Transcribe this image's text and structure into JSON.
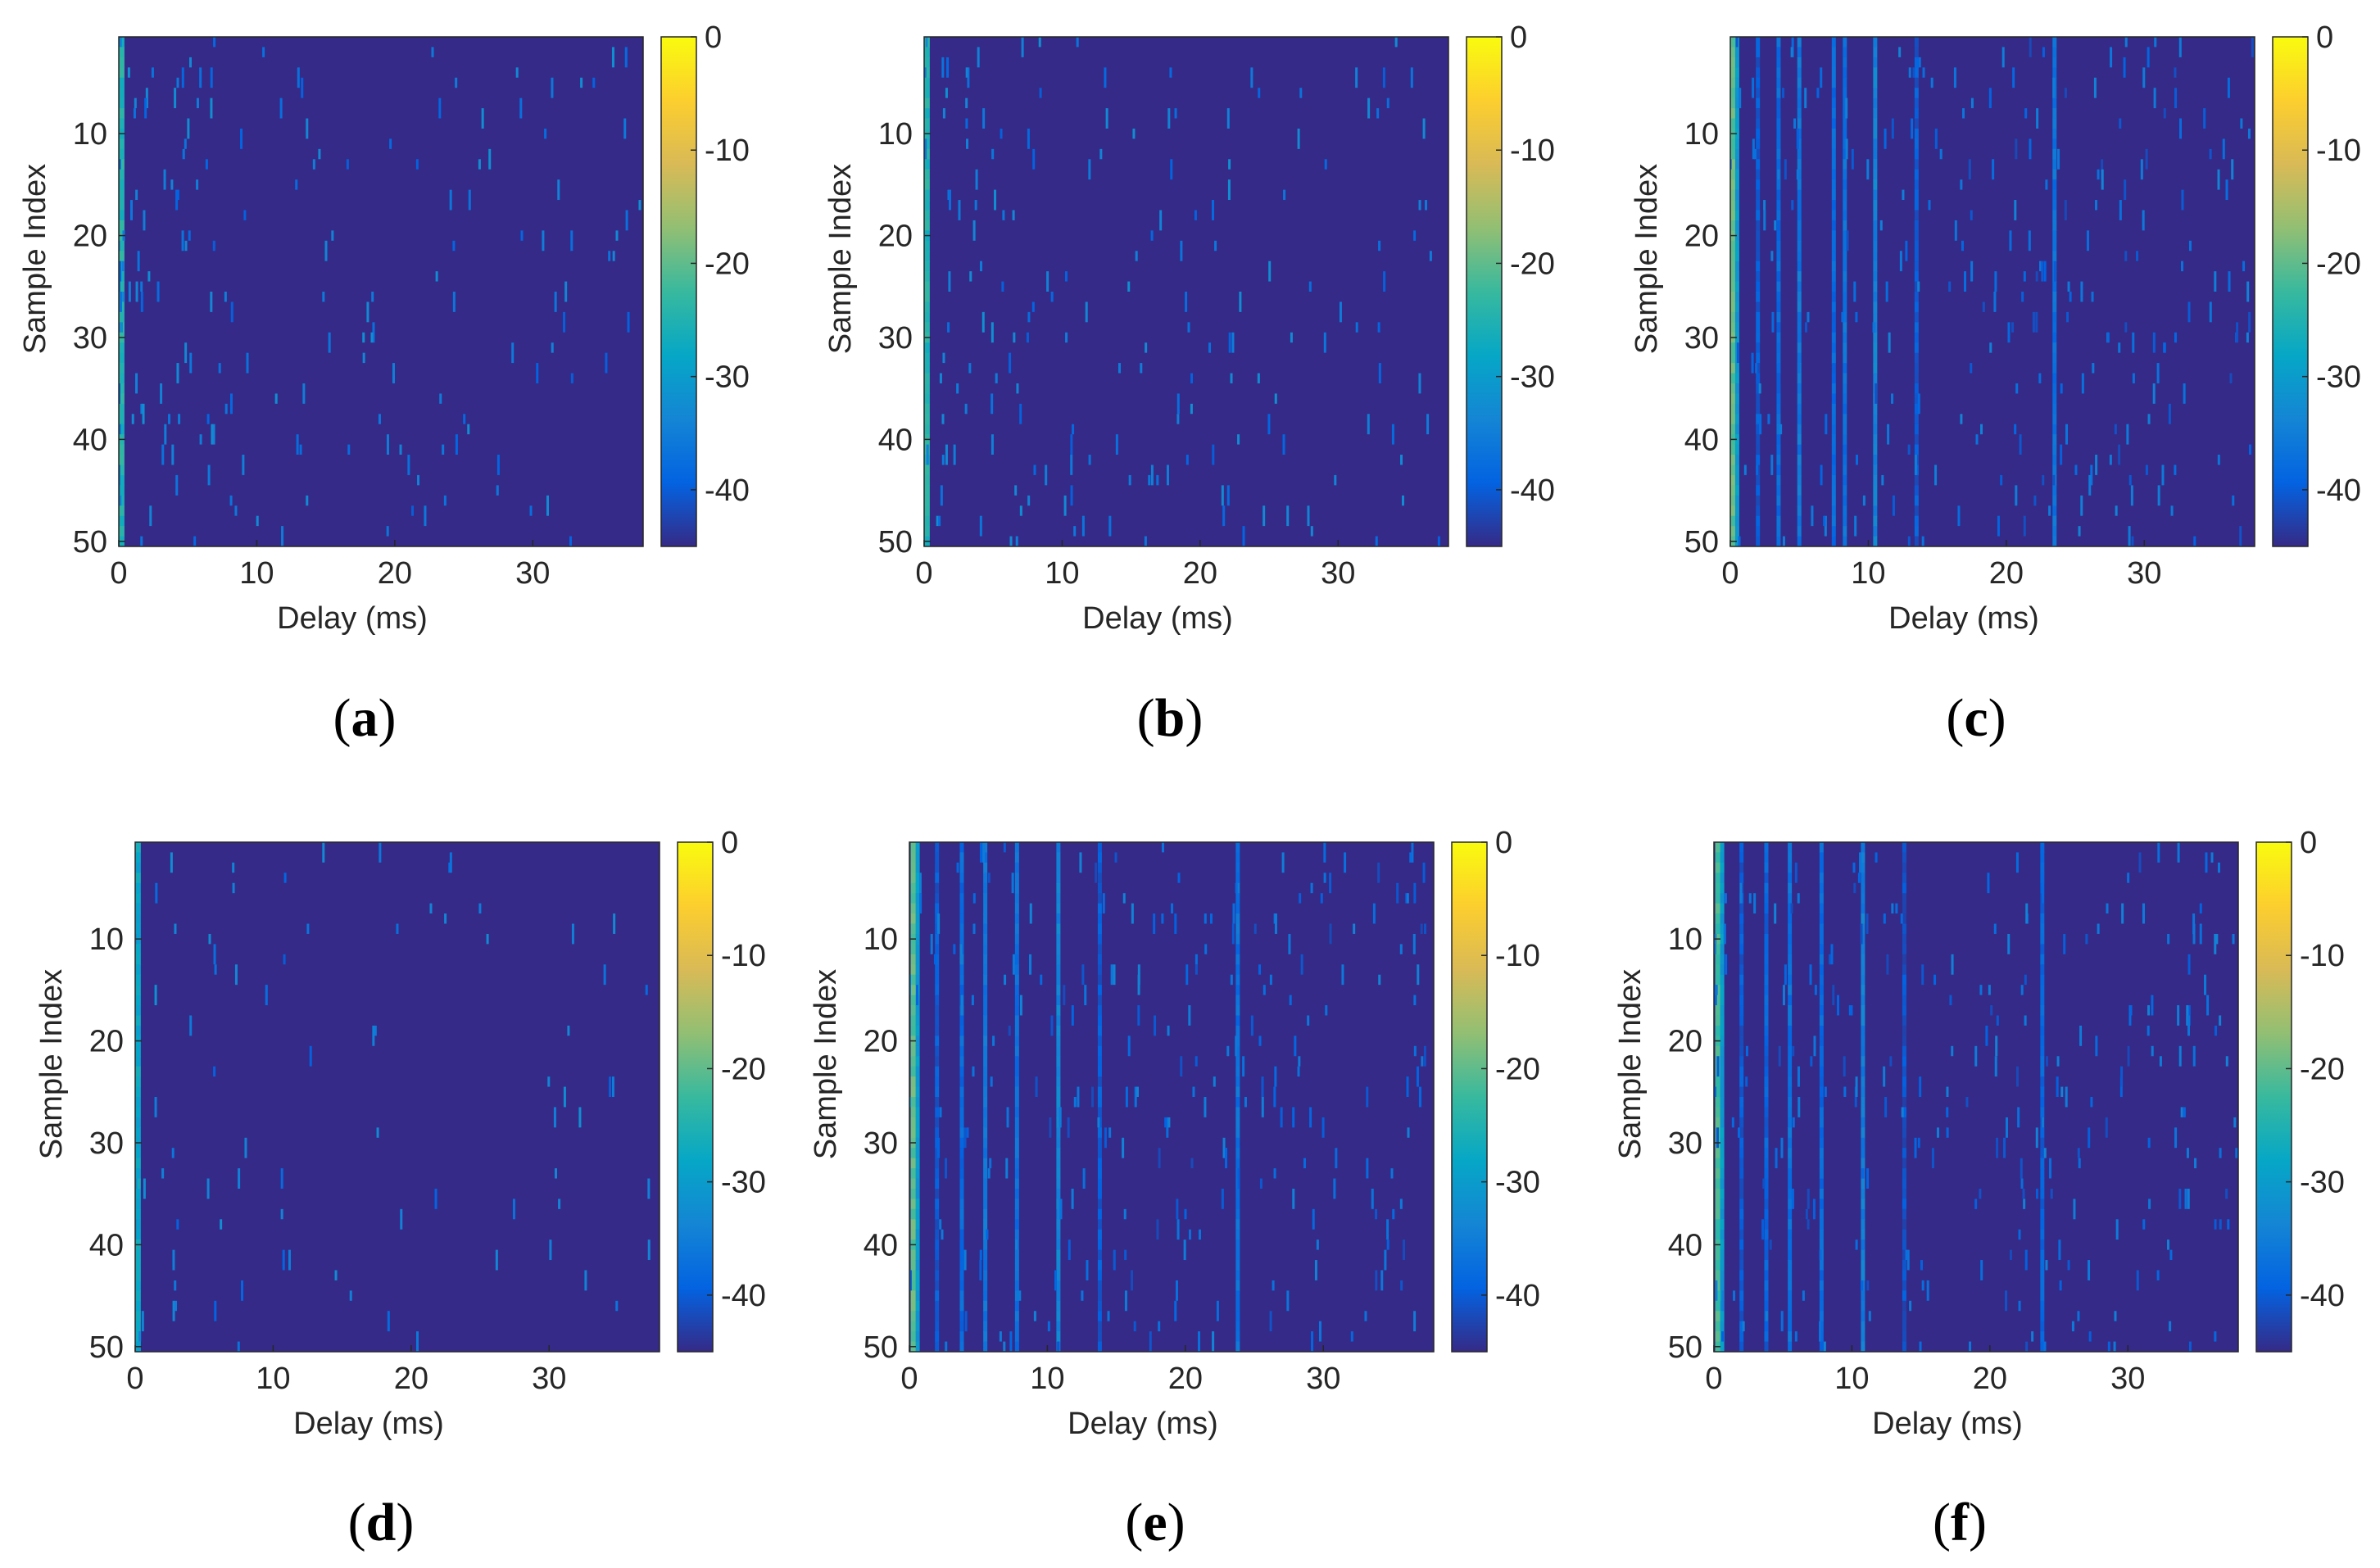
{
  "chart_data": [
    {
      "type": "heatmap",
      "caption_letter": "a",
      "xlabel": "Delay (ms)",
      "ylabel": "Sample Index",
      "xlim": [
        0,
        38
      ],
      "ylim": [
        1,
        50
      ],
      "xticks": [
        0,
        10,
        20,
        30
      ],
      "yticks": [
        10,
        20,
        30,
        40,
        50
      ],
      "colorbar": {
        "range": [
          -45,
          0
        ],
        "ticks": [
          0,
          -10,
          -20,
          -30,
          -40
        ]
      },
      "background_db": -45,
      "pattern": "sparse-scatter",
      "sparsity": 0.55,
      "strong_delays_ms": [
        0.2
      ],
      "strong_delay_levels_db": [
        -25
      ]
    },
    {
      "type": "heatmap",
      "caption_letter": "b",
      "xlabel": "Delay (ms)",
      "ylabel": "Sample Index",
      "xlim": [
        0,
        38
      ],
      "ylim": [
        1,
        50
      ],
      "xticks": [
        0,
        10,
        20,
        30
      ],
      "yticks": [
        10,
        20,
        30,
        40,
        50
      ],
      "colorbar": {
        "range": [
          -45,
          0
        ],
        "ticks": [
          0,
          -10,
          -20,
          -30,
          -40
        ]
      },
      "background_db": -45,
      "pattern": "sparse-scatter",
      "sparsity": 0.55,
      "strong_delays_ms": [
        0.2
      ],
      "strong_delay_levels_db": [
        -25
      ]
    },
    {
      "type": "heatmap",
      "caption_letter": "c",
      "xlabel": "Delay (ms)",
      "ylabel": "Sample Index",
      "xlim": [
        0,
        38
      ],
      "ylim": [
        1,
        50
      ],
      "xticks": [
        0,
        10,
        20,
        30
      ],
      "yticks": [
        10,
        20,
        30,
        40,
        50
      ],
      "colorbar": {
        "range": [
          -45,
          0
        ],
        "ticks": [
          0,
          -10,
          -20,
          -30,
          -40
        ]
      },
      "background_db": -45,
      "pattern": "striped",
      "sparsity": 0.35,
      "strong_delays_ms": [
        0.2,
        0.5,
        2.0,
        3.5,
        5.0,
        7.5,
        8.3,
        10.5,
        13.5,
        23.5
      ],
      "strong_delay_levels_db": [
        -20,
        -30,
        -40,
        -38,
        -36,
        -38,
        -37,
        -34,
        -40,
        -37
      ]
    },
    {
      "type": "heatmap",
      "caption_letter": "d",
      "xlabel": "Delay (ms)",
      "ylabel": "Sample Index",
      "xlim": [
        0,
        38
      ],
      "ylim": [
        1,
        50
      ],
      "xticks": [
        0,
        10,
        20,
        30
      ],
      "yticks": [
        10,
        20,
        30,
        40,
        50
      ],
      "colorbar": {
        "range": [
          -45,
          0
        ],
        "ticks": [
          0,
          -10,
          -20,
          -30,
          -40
        ]
      },
      "background_db": -45,
      "pattern": "sparse-scatter",
      "sparsity": 0.25,
      "strong_delays_ms": [
        0.2
      ],
      "strong_delay_levels_db": [
        -28
      ]
    },
    {
      "type": "heatmap",
      "caption_letter": "e",
      "xlabel": "Delay (ms)",
      "ylabel": "Sample Index",
      "xlim": [
        0,
        38
      ],
      "ylim": [
        1,
        50
      ],
      "xticks": [
        0,
        10,
        20,
        30
      ],
      "yticks": [
        10,
        20,
        30,
        40,
        50
      ],
      "colorbar": {
        "range": [
          -45,
          0
        ],
        "ticks": [
          0,
          -10,
          -20,
          -30,
          -40
        ]
      },
      "background_db": -45,
      "pattern": "striped",
      "sparsity": 0.35,
      "strong_delays_ms": [
        0.3,
        0.6,
        2.0,
        3.8,
        5.5,
        7.8,
        10.8,
        13.8,
        23.8
      ],
      "strong_delay_levels_db": [
        -20,
        -30,
        -40,
        -38,
        -36,
        -37,
        -34,
        -40,
        -37
      ]
    },
    {
      "type": "heatmap",
      "caption_letter": "f",
      "xlabel": "Delay (ms)",
      "ylabel": "Sample Index",
      "xlim": [
        0,
        38
      ],
      "ylim": [
        1,
        50
      ],
      "xticks": [
        0,
        10,
        20,
        30
      ],
      "yticks": [
        10,
        20,
        30,
        40,
        50
      ],
      "colorbar": {
        "range": [
          -45,
          0
        ],
        "ticks": [
          0,
          -10,
          -20,
          -30,
          -40
        ]
      },
      "background_db": -45,
      "pattern": "striped",
      "sparsity": 0.35,
      "strong_delays_ms": [
        0.3,
        0.6,
        2.0,
        3.8,
        5.5,
        7.8,
        10.8,
        13.8,
        23.8
      ],
      "strong_delay_levels_db": [
        -22,
        -30,
        -40,
        -39,
        -37,
        -38,
        -35,
        -41,
        -39
      ]
    }
  ]
}
